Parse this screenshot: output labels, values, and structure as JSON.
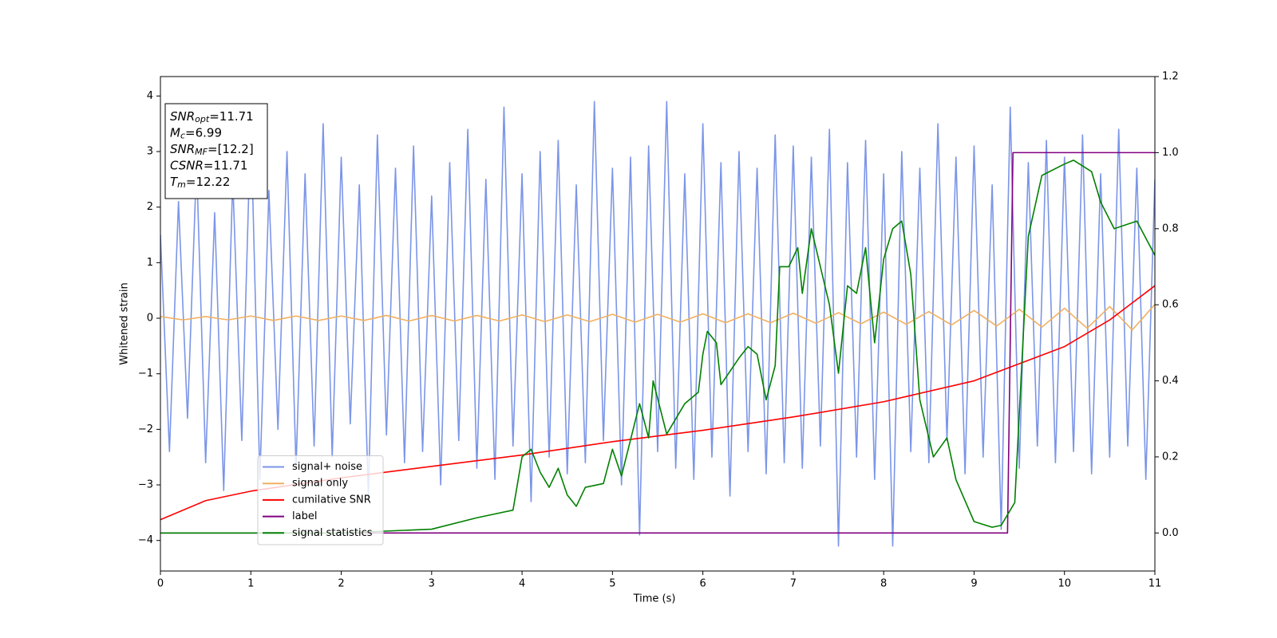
{
  "chart_data": {
    "type": "line",
    "xlabel": "Time (s)",
    "ylabel": "Whitened strain",
    "xlim": [
      0,
      11
    ],
    "xticks": [
      0,
      1,
      2,
      3,
      4,
      5,
      6,
      7,
      8,
      9,
      10,
      11
    ],
    "ylim": [
      -4.55,
      4.35
    ],
    "yticks": [
      {
        "value": -4,
        "label": "−4"
      },
      {
        "value": -3,
        "label": "−3"
      },
      {
        "value": -2,
        "label": "−2"
      },
      {
        "value": -1,
        "label": "−1"
      },
      0,
      1,
      2,
      3,
      4
    ],
    "y2lim": [
      -0.1,
      1.2
    ],
    "y2ticks": [
      {
        "value": 0,
        "label": "0.0"
      },
      {
        "value": 0.2,
        "label": "0.2"
      },
      {
        "value": 0.4,
        "label": "0.4"
      },
      {
        "value": 0.6,
        "label": "0.6"
      },
      {
        "value": 0.8,
        "label": "0.8"
      },
      {
        "value": 1,
        "label": "1.0"
      },
      {
        "value": 1.2,
        "label": "1.2"
      }
    ],
    "legend": "lower left",
    "annotation_lines": [
      {
        "text": "SNR",
        "sub": "opt",
        "rest": "=11.71"
      },
      {
        "text": "M",
        "sub": "c",
        "rest": "=6.99"
      },
      {
        "text": "SNR",
        "sub": "MF",
        "rest": "=[12.2]"
      },
      {
        "text": "CSNR",
        "rest": "=11.71"
      },
      {
        "text": "T",
        "sub": "m",
        "rest": "=12.22"
      }
    ],
    "series": [
      {
        "name": "signal+ noise",
        "color": "#7b95e8",
        "x": [
          0,
          0.1,
          0.2,
          0.3,
          0.4,
          0.5,
          0.6,
          0.7,
          0.8,
          0.9,
          1,
          1.1,
          1.2,
          1.3,
          1.4,
          1.5,
          1.6,
          1.7,
          1.8,
          1.9,
          2,
          2.1,
          2.2,
          2.3,
          2.4,
          2.5,
          2.6,
          2.7,
          2.8,
          2.9,
          3,
          3.1,
          3.2,
          3.3,
          3.4,
          3.5,
          3.6,
          3.7,
          3.8,
          3.9,
          4,
          4.1,
          4.2,
          4.3,
          4.4,
          4.5,
          4.6,
          4.7,
          4.8,
          4.9,
          5,
          5.1,
          5.2,
          5.3,
          5.4,
          5.5,
          5.6,
          5.7,
          5.8,
          5.9,
          6,
          6.1,
          6.2,
          6.3,
          6.4,
          6.5,
          6.6,
          6.7,
          6.8,
          6.9,
          7,
          7.1,
          7.2,
          7.3,
          7.4,
          7.5,
          7.6,
          7.7,
          7.8,
          7.9,
          8,
          8.1,
          8.2,
          8.3,
          8.4,
          8.5,
          8.6,
          8.7,
          8.8,
          8.9,
          9,
          9.1,
          9.2,
          9.3,
          9.4,
          9.5,
          9.6,
          9.7,
          9.8,
          9.9,
          10,
          10.1,
          10.2,
          10.3,
          10.4,
          10.5,
          10.6,
          10.7,
          10.8,
          10.9,
          11
        ],
        "values": [
          1.5,
          -2.4,
          2.1,
          -1.8,
          2.8,
          -2.6,
          1.9,
          -3.1,
          2.5,
          -2.2,
          3.6,
          -2.9,
          2.3,
          -2.0,
          3.0,
          -2.7,
          2.6,
          -2.3,
          3.5,
          -2.5,
          2.9,
          -1.9,
          2.4,
          -3.2,
          3.3,
          -2.1,
          2.7,
          -2.6,
          3.1,
          -2.4,
          2.2,
          -3.0,
          2.8,
          -2.2,
          3.4,
          -2.7,
          2.5,
          -2.9,
          3.8,
          -2.3,
          2.6,
          -3.3,
          3.0,
          -2.5,
          3.2,
          -2.8,
          2.4,
          -2.6,
          3.9,
          -2.2,
          2.7,
          -3.0,
          2.9,
          -3.9,
          3.1,
          -2.4,
          3.9,
          -2.7,
          2.6,
          -2.9,
          3.5,
          -2.5,
          2.8,
          -3.2,
          3.0,
          -2.4,
          2.7,
          -2.8,
          3.3,
          -2.6,
          3.1,
          -2.7,
          2.9,
          -2.3,
          3.4,
          -4.1,
          2.8,
          -2.5,
          3.2,
          -2.9,
          2.6,
          -4.1,
          3.0,
          -2.4,
          2.7,
          -2.6,
          3.5,
          -2.2,
          2.9,
          -2.8,
          3.1,
          -2.5,
          2.4,
          -3.8,
          3.8,
          -2.7,
          2.8,
          -2.3,
          3.2,
          -2.6,
          2.9,
          -2.4,
          3.3,
          -2.8,
          2.6,
          -2.5,
          3.4,
          -2.3,
          2.7,
          -2.9,
          2.5
        ]
      },
      {
        "name": "signal only",
        "color": "#f0b060",
        "x": [
          0,
          0.25,
          0.5,
          0.75,
          1,
          1.25,
          1.5,
          1.75,
          2,
          2.25,
          2.5,
          2.75,
          3,
          3.25,
          3.5,
          3.75,
          4,
          4.25,
          4.5,
          4.75,
          5,
          5.25,
          5.5,
          5.75,
          6,
          6.25,
          6.5,
          6.75,
          7,
          7.25,
          7.5,
          7.75,
          8,
          8.25,
          8.5,
          8.75,
          9,
          9.25,
          9.5,
          9.75,
          10,
          10.25,
          10.5,
          10.75,
          11
        ],
        "values": [
          0.03,
          -0.03,
          0.03,
          -0.03,
          0.04,
          -0.04,
          0.04,
          -0.04,
          0.04,
          -0.04,
          0.05,
          -0.05,
          0.05,
          -0.05,
          0.05,
          -0.05,
          0.06,
          -0.06,
          0.06,
          -0.06,
          0.07,
          -0.07,
          0.07,
          -0.07,
          0.08,
          -0.08,
          0.08,
          -0.08,
          0.09,
          -0.09,
          0.1,
          -0.1,
          0.11,
          -0.11,
          0.12,
          -0.12,
          0.14,
          -0.14,
          0.16,
          -0.16,
          0.18,
          -0.18,
          0.21,
          -0.21,
          0.25
        ]
      },
      {
        "name": "cumilative SNR",
        "color": "#ff0000",
        "axis": "y2",
        "x": [
          0,
          0.5,
          1,
          2,
          3,
          4,
          5,
          6,
          7,
          8,
          9,
          10,
          10.5,
          11
        ],
        "values": [
          0.035,
          0.085,
          0.11,
          0.145,
          0.175,
          0.205,
          0.24,
          0.27,
          0.305,
          0.345,
          0.4,
          0.49,
          0.56,
          0.65
        ]
      },
      {
        "name": "label",
        "color": "#800080",
        "axis": "y2",
        "x": [
          0,
          9.37,
          9.43,
          11
        ],
        "values": [
          0,
          0,
          1,
          1
        ]
      },
      {
        "name": "signal statistics",
        "color": "#008000",
        "axis": "y2",
        "x": [
          0,
          1,
          2,
          3,
          3.5,
          3.9,
          4,
          4.1,
          4.2,
          4.3,
          4.4,
          4.5,
          4.6,
          4.7,
          4.9,
          5,
          5.1,
          5.3,
          5.4,
          5.45,
          5.6,
          5.8,
          5.95,
          6,
          6.05,
          6.15,
          6.2,
          6.4,
          6.5,
          6.6,
          6.7,
          6.8,
          6.85,
          6.95,
          7.05,
          7.1,
          7.2,
          7.4,
          7.5,
          7.6,
          7.7,
          7.8,
          7.9,
          8,
          8.1,
          8.2,
          8.3,
          8.4,
          8.55,
          8.7,
          8.8,
          9,
          9.2,
          9.3,
          9.45,
          9.6,
          9.75,
          10,
          10.1,
          10.3,
          10.4,
          10.55,
          10.8,
          11
        ],
        "values": [
          0,
          0,
          0,
          0.01,
          0.04,
          0.06,
          0.2,
          0.22,
          0.16,
          0.12,
          0.17,
          0.1,
          0.07,
          0.12,
          0.13,
          0.22,
          0.15,
          0.34,
          0.25,
          0.4,
          0.26,
          0.34,
          0.37,
          0.47,
          0.53,
          0.5,
          0.39,
          0.46,
          0.49,
          0.47,
          0.35,
          0.44,
          0.7,
          0.7,
          0.75,
          0.63,
          0.8,
          0.6,
          0.42,
          0.65,
          0.63,
          0.75,
          0.5,
          0.72,
          0.8,
          0.82,
          0.68,
          0.35,
          0.2,
          0.25,
          0.14,
          0.03,
          0.015,
          0.02,
          0.08,
          0.78,
          0.94,
          0.97,
          0.98,
          0.95,
          0.87,
          0.8,
          0.82,
          0.73
        ]
      }
    ]
  }
}
